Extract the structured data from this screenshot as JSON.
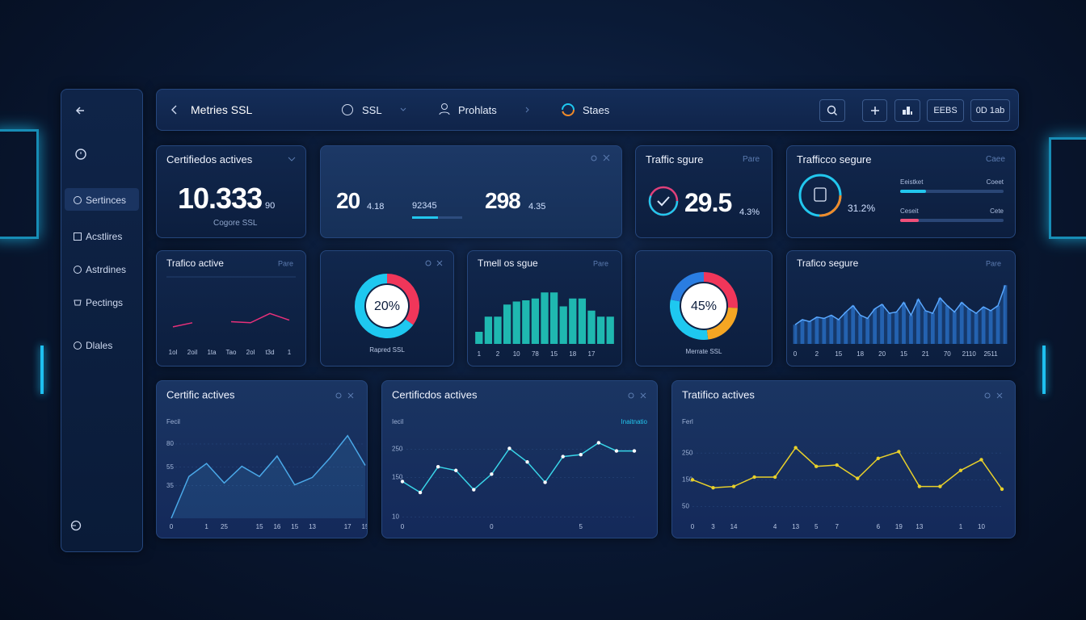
{
  "topbar": {
    "title": "Metries SSL",
    "tabs": [
      "SSL",
      "Prohlats",
      "Staes"
    ],
    "buttons": [
      "EEBS",
      "0D 1ab"
    ]
  },
  "sidebar": {
    "items": [
      "Sertinces",
      "Acstlires",
      "Astrdines",
      "Pectings",
      "Dlales"
    ]
  },
  "stats": {
    "certificates": {
      "title": "Certifiedos actives",
      "value": "10.333",
      "suffix": "90",
      "caption": "Cogore SSL"
    },
    "summary": {
      "items": [
        {
          "value": "20",
          "suffix": "4.18"
        },
        {
          "value": "92345"
        },
        {
          "value": "298",
          "suffix": "4.35"
        }
      ]
    },
    "traffic": {
      "title": "Traffic sgure",
      "corner": "Pare",
      "value": "29.5",
      "suffix": "4.3%"
    },
    "secure": {
      "title": "Trafficco segure",
      "corner": "Caee",
      "value": "31.2%",
      "xlim": [
        0,
        100
      ],
      "rows": [
        {
          "left": "Eeistket",
          "right": "Coeet",
          "value": 25,
          "color": "#22c7ee"
        },
        {
          "left": "Ceseit",
          "right": "Cete",
          "value": 18,
          "color": "#f0507a"
        }
      ]
    }
  },
  "chart_data": [
    {
      "type": "line",
      "title": "Trafico active",
      "corner": "Pare",
      "categories": [
        "1ol",
        "2oil",
        "1ta",
        "Tao",
        "2ol",
        "t3d",
        "1"
      ],
      "values": [
        22,
        30,
        null,
        32,
        30,
        48,
        35
      ],
      "color": "#e8307a",
      "ylim": [
        0,
        100
      ]
    },
    {
      "type": "pie",
      "caption": "Rapred SSL",
      "center_label": "20%",
      "values": [
        35,
        65
      ],
      "colors": [
        "#f0365a",
        "#1ec8f0"
      ]
    },
    {
      "type": "bar",
      "title": "Tmell os sgue",
      "corner": "Pare",
      "categories": [
        "1",
        null,
        "2",
        null,
        "10",
        null,
        "78",
        null,
        "15",
        null,
        "18",
        null,
        "17",
        null,
        null
      ],
      "values": [
        20,
        45,
        45,
        65,
        70,
        72,
        75,
        85,
        85,
        62,
        75,
        75,
        55,
        45,
        45
      ],
      "color": "#1fb8b0",
      "ylim": [
        0,
        100
      ]
    },
    {
      "type": "pie",
      "caption": "Merrate SSL",
      "center_label": "45%",
      "values": [
        26,
        22,
        30,
        22
      ],
      "colors": [
        "#f0365a",
        "#f5a623",
        "#1ec8f0",
        "#2a7de1"
      ]
    },
    {
      "type": "area",
      "title": "Trafico segure",
      "corner": "Pare",
      "categories": [
        "0",
        null,
        null,
        "2",
        null,
        null,
        "15",
        null,
        null,
        "18",
        null,
        null,
        "20",
        null,
        null,
        "15",
        null,
        null,
        "21",
        null,
        null,
        "70",
        null,
        null,
        "2110",
        null,
        null,
        "2511",
        null,
        null
      ],
      "values": [
        30,
        38,
        35,
        42,
        40,
        45,
        38,
        50,
        60,
        45,
        40,
        55,
        62,
        48,
        50,
        65,
        45,
        70,
        52,
        48,
        72,
        60,
        50,
        65,
        55,
        48,
        58,
        52,
        60,
        92
      ],
      "color": "#2f7fe0",
      "ylim": [
        0,
        100
      ]
    },
    {
      "type": "line",
      "title": "Certific actives",
      "y_label": "Fecil",
      "area": true,
      "markers": false,
      "categories": [
        "0",
        null,
        "1",
        "25",
        null,
        "15",
        "16",
        "15",
        "13",
        null,
        "17",
        "15"
      ],
      "values": [
        0,
        45,
        59,
        38,
        56,
        45,
        67,
        36,
        44,
        65,
        89,
        57
      ],
      "color": "#4aa8e8",
      "ylim": [
        0,
        100
      ],
      "yticks": [
        35,
        55,
        80
      ]
    },
    {
      "type": "line",
      "title": "Certificdos actives",
      "y_label": "Iecil",
      "annotation": "Inaitnatio",
      "area": false,
      "markers": true,
      "categories": [
        "0",
        null,
        null,
        null,
        null,
        "0",
        null,
        null,
        null,
        null,
        "5",
        null,
        null,
        null
      ],
      "values": [
        136,
        97,
        188,
        175,
        107,
        162,
        253,
        205,
        133,
        224,
        231,
        273,
        244,
        244
      ],
      "color": "#39d5e8",
      "ylim": [
        0,
        320
      ],
      "yticks": [
        10,
        150,
        250
      ]
    },
    {
      "type": "line",
      "title": "Tratifico actives",
      "y_label": "Ferl",
      "area": false,
      "markers": true,
      "categories": [
        "0",
        "3",
        "14",
        null,
        "4",
        "13",
        "5",
        "7",
        null,
        "6",
        "19",
        "13",
        null,
        "1",
        "10",
        null
      ],
      "values": [
        150,
        120,
        125,
        160,
        160,
        270,
        200,
        205,
        155,
        230,
        255,
        125,
        125,
        185,
        225,
        115
      ],
      "color": "#e8d02a",
      "ylim": [
        0,
        350
      ],
      "yticks": [
        50,
        150,
        250
      ]
    }
  ]
}
